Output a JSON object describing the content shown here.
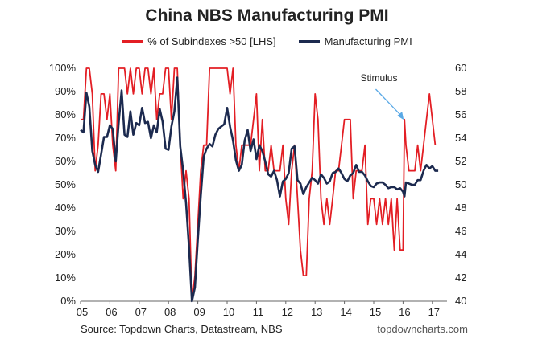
{
  "colors": {
    "red": "#e31e24",
    "navy": "#1c2a4f",
    "annotation_arrow": "#5aa9e6"
  },
  "chart_data": {
    "type": "line",
    "title": "China NBS Manufacturing PMI",
    "source": "Source: Topdown Charts, Datastream, NBS",
    "brand": "topdowncharts.com",
    "legend_position": "top",
    "grid": false,
    "x_ticks": [
      "05",
      "06",
      "07",
      "08",
      "09",
      "10",
      "11",
      "12",
      "13",
      "14",
      "15",
      "16",
      "17"
    ],
    "x_range": [
      2005.0,
      2017.5
    ],
    "left_axis": {
      "range": [
        0,
        100
      ],
      "ticks": [
        "0%",
        "10%",
        "20%",
        "30%",
        "40%",
        "50%",
        "60%",
        "70%",
        "80%",
        "90%",
        "100%"
      ]
    },
    "right_axis": {
      "range": [
        40,
        60
      ],
      "ticks": [
        "40",
        "42",
        "44",
        "46",
        "48",
        "50",
        "52",
        "54",
        "56",
        "58",
        "60"
      ]
    },
    "annotation": {
      "text": "Stimulus",
      "x": 2016.05,
      "y_right": 55.3
    },
    "series": [
      {
        "name": "% of Subindexes >50 [LHS]",
        "axis": "left",
        "color": "#e31e24",
        "points": [
          [
            2005.0,
            78
          ],
          [
            2005.1,
            78
          ],
          [
            2005.2,
            100
          ],
          [
            2005.3,
            100
          ],
          [
            2005.4,
            89
          ],
          [
            2005.5,
            56
          ],
          [
            2005.6,
            67
          ],
          [
            2005.7,
            89
          ],
          [
            2005.8,
            89
          ],
          [
            2005.9,
            78
          ],
          [
            2006.0,
            89
          ],
          [
            2006.1,
            67
          ],
          [
            2006.2,
            56
          ],
          [
            2006.3,
            100
          ],
          [
            2006.4,
            100
          ],
          [
            2006.5,
            100
          ],
          [
            2006.6,
            89
          ],
          [
            2006.7,
            100
          ],
          [
            2006.8,
            89
          ],
          [
            2006.9,
            100
          ],
          [
            2007.0,
            100
          ],
          [
            2007.1,
            89
          ],
          [
            2007.2,
            100
          ],
          [
            2007.3,
            100
          ],
          [
            2007.4,
            89
          ],
          [
            2007.5,
            100
          ],
          [
            2007.6,
            78
          ],
          [
            2007.7,
            89
          ],
          [
            2007.8,
            89
          ],
          [
            2007.9,
            100
          ],
          [
            2008.0,
            100
          ],
          [
            2008.1,
            78
          ],
          [
            2008.2,
            100
          ],
          [
            2008.3,
            100
          ],
          [
            2008.4,
            67
          ],
          [
            2008.5,
            44
          ],
          [
            2008.6,
            56
          ],
          [
            2008.7,
            44
          ],
          [
            2008.8,
            0
          ],
          [
            2008.9,
            11
          ],
          [
            2009.0,
            33
          ],
          [
            2009.1,
            56
          ],
          [
            2009.2,
            67
          ],
          [
            2009.3,
            67
          ],
          [
            2009.4,
            100
          ],
          [
            2009.5,
            100
          ],
          [
            2009.6,
            100
          ],
          [
            2009.7,
            100
          ],
          [
            2009.8,
            100
          ],
          [
            2009.9,
            100
          ],
          [
            2010.0,
            100
          ],
          [
            2010.1,
            89
          ],
          [
            2010.2,
            100
          ],
          [
            2010.3,
            67
          ],
          [
            2010.4,
            56
          ],
          [
            2010.5,
            67
          ],
          [
            2010.6,
            67
          ],
          [
            2010.7,
            67
          ],
          [
            2010.8,
            67
          ],
          [
            2010.9,
            78
          ],
          [
            2011.0,
            89
          ],
          [
            2011.1,
            56
          ],
          [
            2011.2,
            78
          ],
          [
            2011.3,
            56
          ],
          [
            2011.4,
            56
          ],
          [
            2011.5,
            67
          ],
          [
            2011.6,
            56
          ],
          [
            2011.7,
            56
          ],
          [
            2011.8,
            56
          ],
          [
            2011.9,
            67
          ],
          [
            2012.0,
            44
          ],
          [
            2012.1,
            33
          ],
          [
            2012.2,
            56
          ],
          [
            2012.3,
            67
          ],
          [
            2012.4,
            44
          ],
          [
            2012.5,
            22
          ],
          [
            2012.6,
            11
          ],
          [
            2012.7,
            11
          ],
          [
            2012.8,
            44
          ],
          [
            2012.9,
            56
          ],
          [
            2013.0,
            89
          ],
          [
            2013.1,
            78
          ],
          [
            2013.2,
            44
          ],
          [
            2013.3,
            33
          ],
          [
            2013.4,
            44
          ],
          [
            2013.5,
            33
          ],
          [
            2013.6,
            44
          ],
          [
            2013.7,
            56
          ],
          [
            2013.8,
            56
          ],
          [
            2013.9,
            67
          ],
          [
            2014.0,
            78
          ],
          [
            2014.1,
            78
          ],
          [
            2014.2,
            78
          ],
          [
            2014.3,
            44
          ],
          [
            2014.4,
            56
          ],
          [
            2014.5,
            56
          ],
          [
            2014.6,
            56
          ],
          [
            2014.7,
            67
          ],
          [
            2014.8,
            33
          ],
          [
            2014.9,
            44
          ],
          [
            2015.0,
            44
          ],
          [
            2015.1,
            33
          ],
          [
            2015.2,
            44
          ],
          [
            2015.3,
            33
          ],
          [
            2015.4,
            44
          ],
          [
            2015.5,
            33
          ],
          [
            2015.6,
            44
          ],
          [
            2015.7,
            22
          ],
          [
            2015.8,
            44
          ],
          [
            2015.9,
            22
          ],
          [
            2016.0,
            22
          ],
          [
            2016.05,
            78
          ],
          [
            2016.1,
            67
          ],
          [
            2016.2,
            56
          ],
          [
            2016.3,
            56
          ],
          [
            2016.4,
            56
          ],
          [
            2016.5,
            67
          ],
          [
            2016.6,
            56
          ],
          [
            2016.7,
            67
          ],
          [
            2016.8,
            78
          ],
          [
            2016.9,
            89
          ],
          [
            2017.0,
            78
          ],
          [
            2017.1,
            67
          ]
        ]
      },
      {
        "name": "Manufacturing PMI",
        "axis": "right",
        "color": "#1c2a4f",
        "points": [
          [
            2005.0,
            54.7
          ],
          [
            2005.1,
            54.5
          ],
          [
            2005.2,
            57.9
          ],
          [
            2005.3,
            56.7
          ],
          [
            2005.4,
            52.9
          ],
          [
            2005.5,
            51.7
          ],
          [
            2005.6,
            51.1
          ],
          [
            2005.7,
            52.6
          ],
          [
            2005.8,
            54.1
          ],
          [
            2005.9,
            54.1
          ],
          [
            2006.0,
            55.1
          ],
          [
            2006.1,
            54.8
          ],
          [
            2006.2,
            52.0
          ],
          [
            2006.3,
            55.3
          ],
          [
            2006.4,
            58.1
          ],
          [
            2006.5,
            54.3
          ],
          [
            2006.6,
            54.1
          ],
          [
            2006.7,
            56.3
          ],
          [
            2006.8,
            54.3
          ],
          [
            2006.9,
            55.3
          ],
          [
            2007.0,
            55.1
          ],
          [
            2007.1,
            56.6
          ],
          [
            2007.2,
            55.3
          ],
          [
            2007.3,
            55.4
          ],
          [
            2007.4,
            54.0
          ],
          [
            2007.5,
            55.1
          ],
          [
            2007.6,
            54.5
          ],
          [
            2007.7,
            56.5
          ],
          [
            2007.8,
            55.4
          ],
          [
            2007.9,
            53.1
          ],
          [
            2008.0,
            53.0
          ],
          [
            2008.1,
            55.0
          ],
          [
            2008.2,
            56.3
          ],
          [
            2008.3,
            59.2
          ],
          [
            2008.4,
            53.3
          ],
          [
            2008.5,
            51.2
          ],
          [
            2008.6,
            48.4
          ],
          [
            2008.7,
            44.6
          ],
          [
            2008.8,
            40.0
          ],
          [
            2008.9,
            41.2
          ],
          [
            2009.0,
            45.3
          ],
          [
            2009.1,
            49.0
          ],
          [
            2009.2,
            52.4
          ],
          [
            2009.3,
            53.1
          ],
          [
            2009.4,
            53.5
          ],
          [
            2009.5,
            53.3
          ],
          [
            2009.6,
            54.3
          ],
          [
            2009.7,
            54.8
          ],
          [
            2009.8,
            55.0
          ],
          [
            2009.9,
            55.2
          ],
          [
            2010.0,
            56.6
          ],
          [
            2010.1,
            55.0
          ],
          [
            2010.2,
            53.8
          ],
          [
            2010.3,
            52.1
          ],
          [
            2010.4,
            51.2
          ],
          [
            2010.5,
            51.7
          ],
          [
            2010.6,
            53.8
          ],
          [
            2010.7,
            54.7
          ],
          [
            2010.8,
            52.9
          ],
          [
            2010.9,
            53.9
          ],
          [
            2011.0,
            52.2
          ],
          [
            2011.1,
            53.4
          ],
          [
            2011.2,
            52.9
          ],
          [
            2011.3,
            52.0
          ],
          [
            2011.4,
            50.9
          ],
          [
            2011.5,
            50.7
          ],
          [
            2011.6,
            51.2
          ],
          [
            2011.7,
            50.4
          ],
          [
            2011.8,
            49.0
          ],
          [
            2011.9,
            50.3
          ],
          [
            2012.0,
            50.5
          ],
          [
            2012.1,
            51.0
          ],
          [
            2012.2,
            53.1
          ],
          [
            2012.3,
            53.3
          ],
          [
            2012.4,
            50.4
          ],
          [
            2012.5,
            50.1
          ],
          [
            2012.6,
            49.2
          ],
          [
            2012.7,
            49.8
          ],
          [
            2012.8,
            50.2
          ],
          [
            2012.9,
            50.6
          ],
          [
            2013.0,
            50.4
          ],
          [
            2013.1,
            50.1
          ],
          [
            2013.2,
            50.9
          ],
          [
            2013.3,
            50.6
          ],
          [
            2013.4,
            50.1
          ],
          [
            2013.5,
            50.3
          ],
          [
            2013.6,
            51.0
          ],
          [
            2013.7,
            51.1
          ],
          [
            2013.8,
            51.4
          ],
          [
            2013.9,
            51.0
          ],
          [
            2014.0,
            50.5
          ],
          [
            2014.1,
            50.3
          ],
          [
            2014.2,
            50.8
          ],
          [
            2014.3,
            51.0
          ],
          [
            2014.4,
            51.7
          ],
          [
            2014.5,
            51.1
          ],
          [
            2014.6,
            51.1
          ],
          [
            2014.7,
            50.8
          ],
          [
            2014.8,
            50.3
          ],
          [
            2014.9,
            49.9
          ],
          [
            2015.0,
            49.8
          ],
          [
            2015.1,
            50.1
          ],
          [
            2015.2,
            50.2
          ],
          [
            2015.3,
            50.2
          ],
          [
            2015.4,
            50.0
          ],
          [
            2015.5,
            49.7
          ],
          [
            2015.6,
            49.8
          ],
          [
            2015.7,
            49.8
          ],
          [
            2015.8,
            49.6
          ],
          [
            2015.9,
            49.7
          ],
          [
            2016.0,
            49.4
          ],
          [
            2016.05,
            49.0
          ],
          [
            2016.1,
            50.2
          ],
          [
            2016.2,
            50.1
          ],
          [
            2016.3,
            50.0
          ],
          [
            2016.4,
            50.0
          ],
          [
            2016.5,
            50.4
          ],
          [
            2016.6,
            50.4
          ],
          [
            2016.7,
            51.2
          ],
          [
            2016.8,
            51.7
          ],
          [
            2016.9,
            51.4
          ],
          [
            2017.0,
            51.6
          ],
          [
            2017.1,
            51.2
          ],
          [
            2017.2,
            51.2
          ]
        ]
      }
    ]
  }
}
